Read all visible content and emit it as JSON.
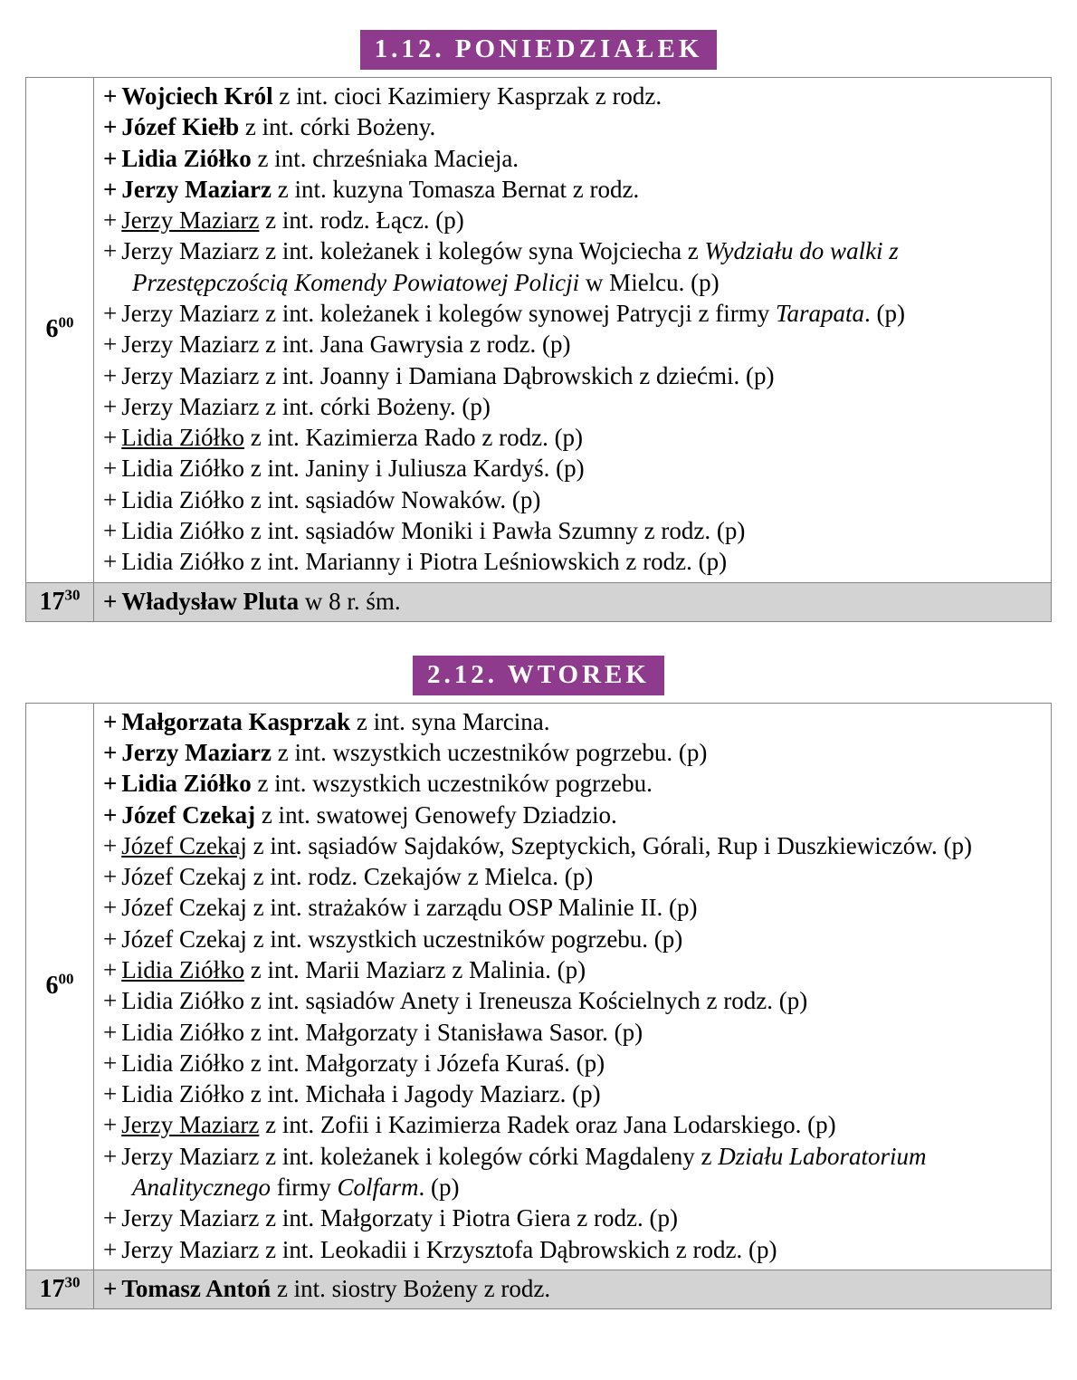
{
  "document": {
    "marker": "+",
    "accent_color": "#8e3a8d",
    "highlight_color": "#d3d3d3"
  },
  "sections": [
    {
      "header": "1.12. PONIEDZIAŁEK",
      "masses": [
        {
          "time": {
            "hour": "6",
            "minutes": "00"
          },
          "highlight": false,
          "intentions": [
            {
              "segments": [
                {
                  "t": "Wojciech Król",
                  "s": "bold"
                },
                {
                  "t": " z int. cioci Kazimiery Kasprzak z rodz.",
                  "s": "normal"
                }
              ]
            },
            {
              "segments": [
                {
                  "t": "Józef Kiełb",
                  "s": "bold"
                },
                {
                  "t": " z int. córki Bożeny.",
                  "s": "normal"
                }
              ]
            },
            {
              "segments": [
                {
                  "t": "Lidia Ziółko",
                  "s": "bold"
                },
                {
                  "t": " z int. chrześniaka Macieja.",
                  "s": "normal"
                }
              ]
            },
            {
              "segments": [
                {
                  "t": "Jerzy Maziarz",
                  "s": "bold"
                },
                {
                  "t": " z int. kuzyna Tomasza Bernat z rodz.",
                  "s": "normal"
                }
              ]
            },
            {
              "segments": [
                {
                  "t": "Jerzy Maziarz",
                  "s": "underline"
                },
                {
                  "t": " z int. rodz. Łącz. (p)",
                  "s": "normal"
                }
              ]
            },
            {
              "segments": [
                {
                  "t": "Jerzy Maziarz z int. koleżanek i kolegów syna Wojciecha z ",
                  "s": "normal"
                },
                {
                  "t": "Wydziału do walki z Przestępczością Komendy Powiatowej Policji",
                  "s": "italic"
                },
                {
                  "t": " w Mielcu. (p)",
                  "s": "normal"
                }
              ]
            },
            {
              "segments": [
                {
                  "t": "Jerzy Maziarz z int. koleżanek i kolegów synowej Patrycji z firmy ",
                  "s": "normal"
                },
                {
                  "t": "Tarapata",
                  "s": "italic"
                },
                {
                  "t": ". (p)",
                  "s": "normal"
                }
              ]
            },
            {
              "segments": [
                {
                  "t": "Jerzy Maziarz z int. Jana Gawrysia z rodz. (p)",
                  "s": "normal"
                }
              ]
            },
            {
              "segments": [
                {
                  "t": "Jerzy Maziarz z int. Joanny i Damiana Dąbrowskich z dziećmi. (p)",
                  "s": "normal"
                }
              ]
            },
            {
              "segments": [
                {
                  "t": "Jerzy Maziarz z int. córki Bożeny. (p)",
                  "s": "normal"
                }
              ]
            },
            {
              "segments": [
                {
                  "t": "Lidia Ziółko",
                  "s": "underline"
                },
                {
                  "t": " z int. Kazimierza Rado z rodz. (p)",
                  "s": "normal"
                }
              ]
            },
            {
              "segments": [
                {
                  "t": "Lidia Ziółko z int. Janiny i Juliusza Kardyś. (p)",
                  "s": "normal"
                }
              ]
            },
            {
              "segments": [
                {
                  "t": "Lidia Ziółko z int. sąsiadów Nowaków. (p)",
                  "s": "normal"
                }
              ]
            },
            {
              "segments": [
                {
                  "t": "Lidia Ziółko z int. sąsiadów Moniki i Pawła Szumny z rodz. (p)",
                  "s": "normal"
                }
              ]
            },
            {
              "segments": [
                {
                  "t": "Lidia Ziółko z int. Marianny i Piotra Leśniowskich z rodz. (p)",
                  "s": "normal"
                }
              ]
            }
          ]
        },
        {
          "time": {
            "hour": "17",
            "minutes": "30"
          },
          "highlight": true,
          "intentions": [
            {
              "segments": [
                {
                  "t": "Władysław Pluta",
                  "s": "bold"
                },
                {
                  "t": " w 8 r. śm.",
                  "s": "normal"
                }
              ]
            }
          ]
        }
      ]
    },
    {
      "header": "2.12. WTOREK",
      "masses": [
        {
          "time": {
            "hour": "6",
            "minutes": "00"
          },
          "highlight": false,
          "intentions": [
            {
              "segments": [
                {
                  "t": "Małgorzata Kasprzak",
                  "s": "bold"
                },
                {
                  "t": " z int. syna Marcina.",
                  "s": "normal"
                }
              ]
            },
            {
              "segments": [
                {
                  "t": "Jerzy Maziarz",
                  "s": "bold"
                },
                {
                  "t": " z int. wszystkich uczestników pogrzebu. (p)",
                  "s": "normal"
                }
              ]
            },
            {
              "segments": [
                {
                  "t": "Lidia Ziółko",
                  "s": "bold"
                },
                {
                  "t": " z int. wszystkich uczestników pogrzebu.",
                  "s": "normal"
                }
              ]
            },
            {
              "segments": [
                {
                  "t": "Józef Czekaj",
                  "s": "bold"
                },
                {
                  "t": " z int. swatowej Genowefy Dziadzio.",
                  "s": "normal"
                }
              ]
            },
            {
              "segments": [
                {
                  "t": "Józef Czekaj",
                  "s": "underline"
                },
                {
                  "t": " z int. sąsiadów Sajdaków, Szeptyckich, Górali, Rup i Duszkiewiczów. (p)",
                  "s": "normal"
                }
              ]
            },
            {
              "segments": [
                {
                  "t": "Józef Czekaj z int. rodz. Czekajów z Mielca. (p)",
                  "s": "normal"
                }
              ]
            },
            {
              "segments": [
                {
                  "t": "Józef Czekaj z int. strażaków i zarządu OSP Malinie II. (p)",
                  "s": "normal"
                }
              ]
            },
            {
              "segments": [
                {
                  "t": "Józef Czekaj z int. wszystkich uczestników pogrzebu. (p)",
                  "s": "normal"
                }
              ]
            },
            {
              "segments": [
                {
                  "t": "Lidia Ziółko",
                  "s": "underline"
                },
                {
                  "t": " z int. Marii Maziarz z Malinia. (p)",
                  "s": "normal"
                }
              ]
            },
            {
              "segments": [
                {
                  "t": "Lidia Ziółko z int. sąsiadów Anety i Ireneusza Kościelnych z rodz. (p)",
                  "s": "normal"
                }
              ]
            },
            {
              "segments": [
                {
                  "t": "Lidia Ziółko z int. Małgorzaty i Stanisława Sasor. (p)",
                  "s": "normal"
                }
              ]
            },
            {
              "segments": [
                {
                  "t": "Lidia Ziółko z int. Małgorzaty i Józefa Kuraś. (p)",
                  "s": "normal"
                }
              ]
            },
            {
              "segments": [
                {
                  "t": "Lidia Ziółko z int. Michała i Jagody Maziarz. (p)",
                  "s": "normal"
                }
              ]
            },
            {
              "segments": [
                {
                  "t": "Jerzy Maziarz",
                  "s": "underline"
                },
                {
                  "t": " z int. Zofii i Kazimierza Radek oraz Jana Lodarskiego. (p)",
                  "s": "normal"
                }
              ]
            },
            {
              "segments": [
                {
                  "t": "Jerzy Maziarz z int. koleżanek i kolegów córki Magdaleny z ",
                  "s": "normal"
                },
                {
                  "t": "Działu Laboratorium Analitycznego",
                  "s": "italic"
                },
                {
                  "t": " firmy ",
                  "s": "normal"
                },
                {
                  "t": "Colfarm",
                  "s": "italic"
                },
                {
                  "t": ". (p)",
                  "s": "normal"
                }
              ]
            },
            {
              "segments": [
                {
                  "t": "Jerzy Maziarz z int. Małgorzaty i Piotra Giera z rodz. (p)",
                  "s": "normal"
                }
              ]
            },
            {
              "segments": [
                {
                  "t": "Jerzy Maziarz z int. Leokadii i Krzysztofa Dąbrowskich z rodz. (p)",
                  "s": "normal"
                }
              ]
            }
          ]
        },
        {
          "time": {
            "hour": "17",
            "minutes": "30"
          },
          "highlight": true,
          "intentions": [
            {
              "segments": [
                {
                  "t": "Tomasz Antoń",
                  "s": "bold"
                },
                {
                  "t": " z int. siostry Bożeny z rodz.",
                  "s": "normal"
                }
              ]
            }
          ]
        }
      ]
    }
  ]
}
